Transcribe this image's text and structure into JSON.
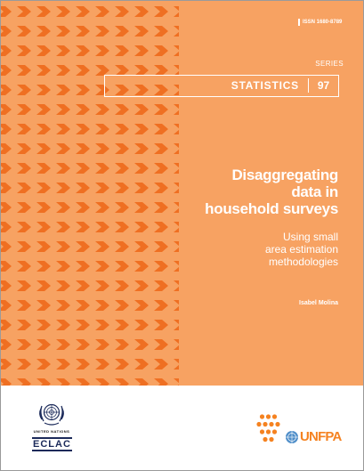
{
  "issn": "ISSN 1680-8789",
  "series_label": "SERIES",
  "series_name": "STATISTICS",
  "series_number": "97",
  "title_lines": [
    "Disaggregating",
    "data in",
    "household surveys"
  ],
  "subtitle_lines": [
    "Using small",
    "area estimation",
    "methodologies"
  ],
  "author": "Isabel Molina",
  "logos": {
    "united_nations": "UNITED NATIONS",
    "eclac": "ECLAC",
    "unfpa": "UNFPA"
  },
  "colors": {
    "background_orange": "#f7a262",
    "chevron_orange": "#ef6f22",
    "unfpa_orange": "#f58220",
    "eclac_blue": "#1b2a5a"
  }
}
